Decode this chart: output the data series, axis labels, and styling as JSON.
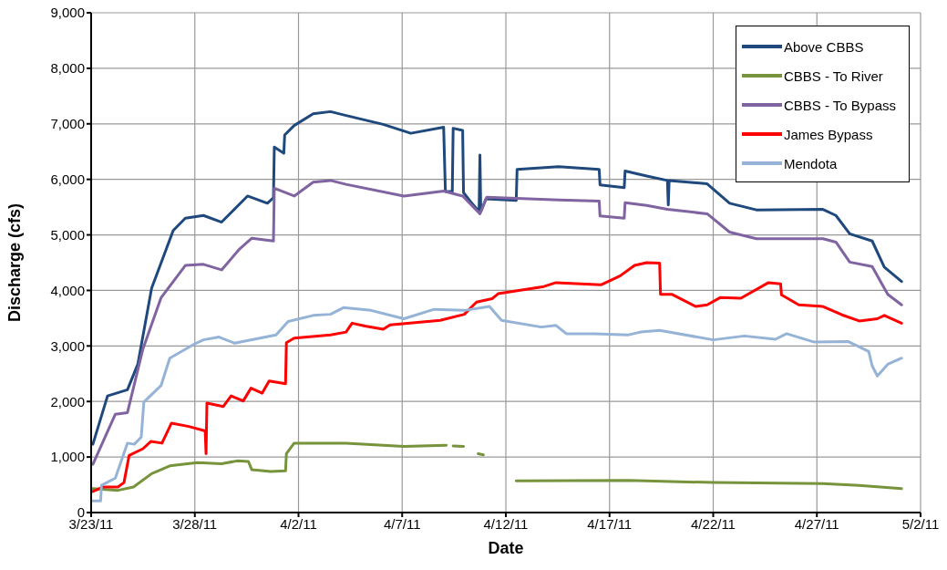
{
  "chart_data": {
    "type": "line",
    "xlabel": "Date",
    "ylabel": "Discharge (cfs)",
    "xlim": [
      "--03-23",
      "--05-02"
    ],
    "xticks": [
      {
        "value": "--03-23",
        "label": "3/23/11"
      },
      {
        "value": "--03-28",
        "label": "3/28/11"
      },
      {
        "value": "--04-02",
        "label": "4/2/11"
      },
      {
        "value": "--04-07",
        "label": "4/7/11"
      },
      {
        "value": "--04-12",
        "label": "4/12/11"
      },
      {
        "value": "--04-17",
        "label": "4/17/11"
      },
      {
        "value": "--04-22",
        "label": "4/22/11"
      },
      {
        "value": "--04-27",
        "label": "4/27/11"
      },
      {
        "value": "--05-02",
        "label": "5/2/11"
      }
    ],
    "ylim": [
      0,
      9000
    ],
    "yticks": [
      0,
      {
        "value": 1000,
        "label": "1,000"
      },
      {
        "value": 2000,
        "label": "2,000"
      },
      {
        "value": 3000,
        "label": "3,000"
      },
      {
        "value": 4000,
        "label": "4,000"
      },
      {
        "value": 5000,
        "label": "5,000"
      },
      {
        "value": 6000,
        "label": "6,000"
      },
      {
        "value": 7000,
        "label": "7,000"
      },
      {
        "value": 8000,
        "label": "8,000"
      },
      {
        "value": 9000,
        "label": "9,000"
      }
    ],
    "grid": true,
    "legend": "top right",
    "marker": "none",
    "line_style": "solid",
    "series": [
      {
        "name": "Above CBBS",
        "color": "#1f497d",
        "x": [
          "--03-23T02:00",
          "--03-23T19:00",
          "--03-24T18:00",
          "--03-25T06:00",
          "--03-25T22:00",
          "--03-26T23:00",
          "--03-27T13:00",
          "--03-28T10:00",
          "--03-29T07:00",
          "--03-30T13:00",
          "--03-31T12:00",
          "--03-31T19:00",
          "--03-31T20:00",
          "--04-01T07:00",
          "--04-01T08:00",
          "--04-01T19:00",
          "--04-02T17:00",
          "--04-03T13:00",
          "--04-04T07:00",
          "--04-06T02:00",
          "--04-07T10:00",
          "--04-09T00:00",
          "--04-09T02:00",
          "--04-09T10:00",
          "--04-09T11:00",
          "--04-09T22:00",
          "--04-09T23:00",
          "--04-10T07:00",
          "--04-10T17:00",
          "--04-10T18:00",
          "--04-10T19:00",
          "--04-11T01:00",
          "--04-12T12:00",
          "--04-12T13:00",
          "--04-14T13:00",
          "--04-16T12:00",
          "--04-16T13:00",
          "--04-17T17:00",
          "--04-17T18:00",
          "--04-18T19:00",
          "--04-19T19:00",
          "--04-19T20:00",
          "--04-19T21:00",
          "--04-21T17:00",
          "--04-22T19:00",
          "--04-24T02:00",
          "--04-27T07:00",
          "--04-27T22:00",
          "--04-28T14:00",
          "--04-29T16:00",
          "--04-30T06:00",
          "--05-01T02:00"
        ],
        "values": [
          1230,
          2100,
          2210,
          2670,
          4040,
          5080,
          5300,
          5350,
          5230,
          5700,
          5570,
          5670,
          6580,
          6470,
          6800,
          6970,
          7180,
          7220,
          7150,
          6990,
          6830,
          6940,
          5780,
          5780,
          6920,
          6880,
          5760,
          5600,
          5420,
          6440,
          5420,
          5650,
          5620,
          6180,
          6230,
          6180,
          5900,
          5850,
          6150,
          6060,
          5980,
          5540,
          5980,
          5920,
          5570,
          5450,
          5460,
          5350,
          5020,
          4890,
          4420,
          4160
        ]
      },
      {
        "name": "CBBS - To River",
        "color": "#77933c",
        "x": [
          "--03-23T02:00",
          "--03-24T07:00",
          "--03-25T01:00",
          "--03-25T22:00",
          "--03-26T19:00",
          "--03-28T03:00",
          "--03-29T07:00",
          "--03-30T01:00",
          "--03-30T14:00",
          "--03-30T18:00",
          "--03-31T16:00",
          "--04-01T09:00",
          "--04-01T10:00",
          "--04-01T19:00",
          "--04-04T07:00",
          "--04-07T02:00",
          "--04-09T03:00",
          "--04-09T07:00",
          "--04-09T11:00",
          "--04-09T23:00",
          "--04-10T08:00",
          "--04-10T16:00",
          "--04-10T22:00",
          "--04-11T12:00",
          "--04-12T12:00",
          "--04-17T22:00",
          "--04-22T00:00",
          "--04-27T07:00",
          "--04-29T01:00",
          "--05-01T02:00"
        ],
        "values": [
          430,
          400,
          460,
          700,
          840,
          900,
          880,
          930,
          920,
          770,
          740,
          750,
          1060,
          1250,
          1250,
          1190,
          1210,
          null,
          1200,
          1190,
          null,
          1060,
          1040,
          null,
          570,
          580,
          540,
          520,
          490,
          430
        ]
      },
      {
        "name": "CBBS - To Bypass",
        "color": "#8064a2",
        "x": [
          "--03-23T02:00",
          "--03-24T04:00",
          "--03-24T18:00",
          "--03-25T12:00",
          "--03-26T09:00",
          "--03-27T13:00",
          "--03-28T10:00",
          "--03-29T07:00",
          "--03-30T04:00",
          "--03-30T18:00",
          "--03-31T19:00",
          "--03-31T20:00",
          "--04-01T19:00",
          "--04-02T17:00",
          "--04-03T13:00",
          "--04-04T07:00",
          "--04-07T02:00",
          "--04-09T00:00",
          "--04-09T22:00",
          "--04-10T18:00",
          "--04-11T02:00",
          "--04-14T13:00",
          "--04-16T12:00",
          "--04-16T13:00",
          "--04-17T17:00",
          "--04-17T18:00",
          "--04-18T19:00",
          "--04-19T19:00",
          "--04-21T17:00",
          "--04-22T19:00",
          "--04-24T02:00",
          "--04-27T07:00",
          "--04-27T22:00",
          "--04-28T14:00",
          "--04-29T16:00",
          "--04-30T10:00",
          "--05-01T02:00"
        ],
        "values": [
          870,
          1770,
          1800,
          2950,
          3870,
          4450,
          4470,
          4370,
          4750,
          4940,
          4890,
          5840,
          5700,
          5950,
          5980,
          5910,
          5700,
          5790,
          5700,
          5380,
          5680,
          5630,
          5610,
          5340,
          5300,
          5580,
          5530,
          5460,
          5380,
          5050,
          4930,
          4930,
          4870,
          4510,
          4430,
          3930,
          3740
        ]
      },
      {
        "name": "James Bypass",
        "color": "#ff0000",
        "x": [
          "--03-23T02:00",
          "--03-23T14:00",
          "--03-24T07:00",
          "--03-24T14:00",
          "--03-24T20:00",
          "--03-25T12:00",
          "--03-25T21:00",
          "--03-26T10:00",
          "--03-26T21:00",
          "--03-27T17:00",
          "--03-28T12:00",
          "--03-28T13:00",
          "--03-28T14:00",
          "--03-29T09:00",
          "--03-29T18:00",
          "--03-30T08:00",
          "--03-30T17:00",
          "--03-31T06:00",
          "--03-31T14:00",
          "--04-01T09:00",
          "--04-01T10:00",
          "--04-01T19:00",
          "--04-03T13:00",
          "--04-04T07:00",
          "--04-04T14:00",
          "--04-05T05:00",
          "--04-06T02:00",
          "--04-06T10:00",
          "--04-08T20:00",
          "--04-10T00:00",
          "--04-10T14:00",
          "--04-11T08:00",
          "--04-11T15:00",
          "--04-13T20:00",
          "--04-14T10:00",
          "--04-16T14:00",
          "--04-17T12:00",
          "--04-18T05:00",
          "--04-18T19:00",
          "--04-19T10:00",
          "--04-19T11:00",
          "--04-20T00:00",
          "--04-21T04:00",
          "--04-21T17:00",
          "--04-22T08:00",
          "--04-23T08:00",
          "--04-24T16:00",
          "--04-25T06:00",
          "--04-25T07:00",
          "--04-26T03:00",
          "--04-27T07:00",
          "--04-28T05:00",
          "--04-29T01:00",
          "--04-29T22:00",
          "--04-30T06:00",
          "--05-01T02:00"
        ],
        "values": [
          380,
          460,
          460,
          540,
          1030,
          1150,
          1280,
          1250,
          1610,
          1550,
          1470,
          1060,
          1970,
          1910,
          2100,
          2010,
          2240,
          2150,
          2370,
          2320,
          3060,
          3140,
          3200,
          3250,
          3410,
          3360,
          3300,
          3380,
          3460,
          3570,
          3790,
          3850,
          3940,
          4070,
          4140,
          4100,
          4260,
          4450,
          4500,
          4490,
          3930,
          3930,
          3710,
          3740,
          3870,
          3860,
          4140,
          4120,
          3920,
          3740,
          3710,
          3560,
          3450,
          3490,
          3550,
          3410
        ]
      },
      {
        "name": "Mendota",
        "color": "#95b3d7",
        "x": [
          "--03-23T02:00",
          "--03-23T11:00",
          "--03-23T12:00",
          "--03-24T04:00",
          "--03-24T18:00",
          "--03-25T02:00",
          "--03-25T10:00",
          "--03-25T13:00",
          "--03-26T09:00",
          "--03-26T19:00",
          "--03-27T23:00",
          "--03-28T10:00",
          "--03-29T04:00",
          "--03-29T22:00",
          "--03-31T22:00",
          "--04-01T12:00",
          "--04-02T17:00",
          "--04-03T13:00",
          "--04-04T04:00",
          "--04-05T12:00",
          "--04-07T02:00",
          "--04-08T13:00",
          "--04-10T00:00",
          "--04-11T05:00",
          "--04-11T19:00",
          "--04-13T17:00",
          "--04-14T10:00",
          "--04-14T22:00",
          "--04-16T07:00",
          "--04-17T22:00",
          "--04-18T12:00",
          "--04-19T10:00",
          "--04-22T00:00",
          "--04-23T12:00",
          "--04-25T00:00",
          "--04-25T13:00",
          "--04-26T21:00",
          "--04-28T12:00",
          "--04-29T12:00",
          "--04-29T16:00",
          "--04-29T22:00",
          "--04-30T10:00",
          "--05-01T02:00"
        ],
        "values": [
          210,
          210,
          490,
          620,
          1250,
          1230,
          1360,
          1990,
          2290,
          2780,
          3030,
          3110,
          3160,
          3050,
          3200,
          3440,
          3550,
          3570,
          3690,
          3640,
          3490,
          3660,
          3640,
          3710,
          3460,
          3340,
          3370,
          3220,
          3220,
          3200,
          3250,
          3280,
          3110,
          3180,
          3120,
          3220,
          3070,
          3080,
          2900,
          2640,
          2460,
          2670,
          2780
        ]
      }
    ]
  }
}
